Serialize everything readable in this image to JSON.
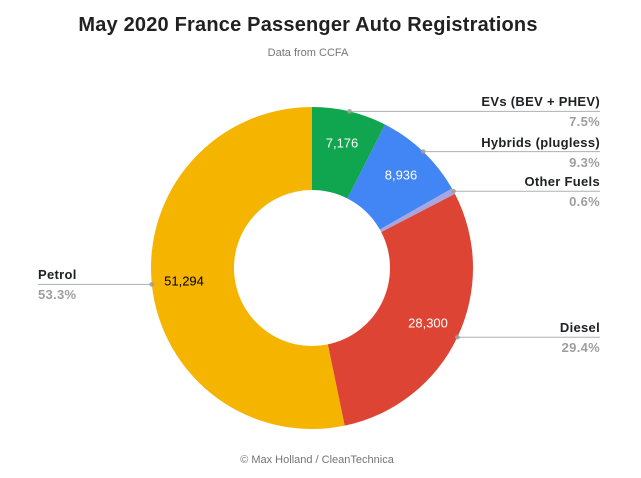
{
  "page": {
    "title": "May 2020 France Passenger Auto Registrations",
    "subtitle": "Data from CCFA",
    "footer": "© Max Holland / CleanTechnica"
  },
  "chart_data": {
    "type": "pie",
    "subtype": "donut",
    "title": "May 2020 France Passenger Auto Registrations",
    "subtitle": "Data from CCFA",
    "source_note": "© Max Holland / CleanTechnica",
    "legend_position": "outside-callouts",
    "slice_order": "clockwise-from-top",
    "slices": [
      {
        "label": "EVs (BEV + PHEV)",
        "value": 7176,
        "value_label": "7,176",
        "pct": 7.5,
        "pct_label": "7.5%",
        "color": "#10A54F",
        "value_label_color": "#FFFFFF"
      },
      {
        "label": "Hybrids (plugless)",
        "value": 8936,
        "value_label": "8,936",
        "pct": 9.3,
        "pct_label": "9.3%",
        "color": "#4285F4",
        "value_label_color": "#FFFFFF"
      },
      {
        "label": "Other Fuels",
        "value": null,
        "value_label": null,
        "pct": 0.6,
        "pct_label": "0.6%",
        "color": "#A8A5DF",
        "value_label_color": null
      },
      {
        "label": "Diesel",
        "value": 28300,
        "value_label": "28,300",
        "pct": 29.4,
        "pct_label": "29.4%",
        "color": "#DE4433",
        "value_label_color": "#FFFFFF"
      },
      {
        "label": "Petrol",
        "value": 51294,
        "value_label": "51,294",
        "pct": 53.3,
        "pct_label": "53.3%",
        "color": "#F4B400",
        "value_label_color": "#000000"
      }
    ],
    "callout_style": {
      "line_color": "#B0B0B0",
      "dot_color": "#9E9E9E",
      "label_color": "#202124",
      "pct_color": "#9E9E9E"
    }
  }
}
